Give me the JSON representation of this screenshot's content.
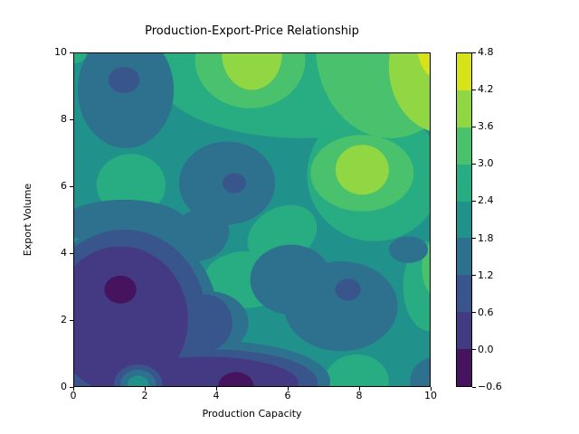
{
  "title": "Production-Export-Price Relationship",
  "axes": {
    "xlabel": "Production Capacity",
    "ylabel": "Export Volume",
    "x_range": [
      0,
      10
    ],
    "y_range": [
      0,
      10
    ],
    "x_ticks": [
      {
        "value": 0,
        "label": "0"
      },
      {
        "value": 2,
        "label": "2"
      },
      {
        "value": 4,
        "label": "4"
      },
      {
        "value": 6,
        "label": "6"
      },
      {
        "value": 8,
        "label": "8"
      },
      {
        "value": 10,
        "label": "10"
      }
    ],
    "y_ticks": [
      {
        "value": 0,
        "label": "0"
      },
      {
        "value": 2,
        "label": "2"
      },
      {
        "value": 4,
        "label": "4"
      },
      {
        "value": 6,
        "label": "6"
      },
      {
        "value": 8,
        "label": "8"
      },
      {
        "value": 10,
        "label": "10"
      }
    ]
  },
  "colorbar": {
    "range": [
      -0.6,
      4.8
    ],
    "segment_colors_top_to_bottom": [
      "#d8e219",
      "#90d743",
      "#4ac16d",
      "#27ad81",
      "#21918c",
      "#2d718e",
      "#39568c",
      "#443a83",
      "#46135e"
    ],
    "ticks": [
      {
        "value": 4.8,
        "label": "4.8"
      },
      {
        "value": 4.2,
        "label": "4.2"
      },
      {
        "value": 3.6,
        "label": "3.6"
      },
      {
        "value": 3.0,
        "label": "3.0"
      },
      {
        "value": 2.4,
        "label": "2.4"
      },
      {
        "value": 1.8,
        "label": "1.8"
      },
      {
        "value": 1.2,
        "label": "1.2"
      },
      {
        "value": 0.6,
        "label": "0.6"
      },
      {
        "value": 0.0,
        "label": "0.0"
      },
      {
        "value": -0.6,
        "label": "−0.6"
      }
    ]
  },
  "chart_data": {
    "type": "contour_filled",
    "title": "Production-Export-Price Relationship",
    "xlabel": "Production Capacity",
    "ylabel": "Export Volume",
    "x_range": [
      0,
      10
    ],
    "y_range": [
      0,
      10
    ],
    "z_range": [
      -0.6,
      4.8
    ],
    "levels": [
      -0.6,
      0.0,
      0.6,
      1.2,
      1.8,
      2.4,
      3.0,
      3.6,
      4.2,
      4.8
    ],
    "colormap": "viridis",
    "grid": false,
    "legend": "colorbar-right",
    "band_colors": [
      "#46135e",
      "#443a83",
      "#39568c",
      "#2d718e",
      "#21918c",
      "#27ad81",
      "#4ac16d",
      "#90d743",
      "#d8e219"
    ],
    "background_band": 5,
    "features": {
      "minima": [
        {
          "x": 1.4,
          "y": 2.9,
          "z": -0.5
        },
        {
          "x": 4.5,
          "y": 0.0,
          "z": -0.4
        },
        {
          "x": 1.4,
          "y": 9.2,
          "z": 0.9
        },
        {
          "x": 4.5,
          "y": 6.1,
          "z": 0.9
        },
        {
          "x": 7.7,
          "y": 2.9,
          "z": 0.9
        }
      ],
      "maxima": [
        {
          "x": 10.0,
          "y": 10.0,
          "z": 4.6
        },
        {
          "x": 5.0,
          "y": 10.0,
          "z": 4.0
        },
        {
          "x": 8.1,
          "y": 6.5,
          "z": 4.0
        },
        {
          "x": 1.6,
          "y": 6.05,
          "z": 2.7
        },
        {
          "x": 4.85,
          "y": 3.2,
          "z": 2.7
        },
        {
          "x": 7.95,
          "y": 0.15,
          "z": 2.8
        },
        {
          "x": 10.0,
          "y": 3.5,
          "z": 3.3
        },
        {
          "x": 1.8,
          "y": 0.1,
          "z": 2.0
        }
      ]
    },
    "regions": [
      {
        "band": 6,
        "x": 6.4,
        "y": 9.4,
        "rx": 4.1,
        "ry": 1.95
      },
      {
        "band": 6,
        "x": 8.45,
        "y": 6.35,
        "rx": 1.9,
        "ry": 2.0
      },
      {
        "band": 6,
        "x": 10.0,
        "y": 3.0,
        "rx": 0.75,
        "ry": 1.35
      },
      {
        "band": 6,
        "x": 4.85,
        "y": 3.2,
        "rx": 1.2,
        "ry": 0.85
      },
      {
        "band": 6,
        "x": 5.85,
        "y": 4.55,
        "rx": 1.05,
        "ry": 0.8,
        "rot": -35
      },
      {
        "band": 6,
        "x": 1.6,
        "y": 6.05,
        "rx": 0.97,
        "ry": 0.93
      },
      {
        "band": 6,
        "x": 0.0,
        "y": 10.0,
        "rx": 0.35,
        "ry": 0.3
      },
      {
        "band": 6,
        "x": 7.95,
        "y": 0.15,
        "rx": 0.9,
        "ry": 0.8
      },
      {
        "band": 7,
        "x": 4.95,
        "y": 9.8,
        "rx": 1.55,
        "ry": 1.45
      },
      {
        "band": 7,
        "x": 8.9,
        "y": 10.15,
        "rx": 2.1,
        "ry": 2.7
      },
      {
        "band": 7,
        "x": 8.1,
        "y": 6.4,
        "rx": 1.45,
        "ry": 1.15
      },
      {
        "band": 7,
        "x": 10.2,
        "y": 3.55,
        "rx": 0.42,
        "ry": 0.85
      },
      {
        "band": 8,
        "x": 5.0,
        "y": 10.0,
        "rx": 0.85,
        "ry": 1.1
      },
      {
        "band": 8,
        "x": 10.4,
        "y": 9.6,
        "rx": 1.55,
        "ry": 2.0
      },
      {
        "band": 8,
        "x": 8.1,
        "y": 6.5,
        "rx": 0.75,
        "ry": 0.75
      },
      {
        "band": 9,
        "x": 10.3,
        "y": 10.25,
        "rx": 0.65,
        "ry": 1.05
      },
      {
        "band": 4,
        "x": 1.45,
        "y": 8.9,
        "rx": 1.35,
        "ry": 1.75
      },
      {
        "band": 4,
        "x": 1.4,
        "y": 4.9,
        "rx": 1.75,
        "ry": 0.7
      },
      {
        "band": 4,
        "x": 4.3,
        "y": 6.1,
        "rx": 1.35,
        "ry": 1.25
      },
      {
        "band": 4,
        "x": 3.55,
        "y": 4.55,
        "rx": 0.85,
        "ry": 0.75,
        "rot": -40
      },
      {
        "band": 4,
        "x": 6.1,
        "y": 3.2,
        "rx": 1.15,
        "ry": 1.05
      },
      {
        "band": 4,
        "x": 7.5,
        "y": 2.4,
        "rx": 1.6,
        "ry": 1.35
      },
      {
        "band": 4,
        "x": 9.4,
        "y": 4.1,
        "rx": 0.55,
        "ry": 0.4
      },
      {
        "band": 4,
        "x": 10.1,
        "y": 0.15,
        "rx": 0.65,
        "ry": 0.7
      },
      {
        "band": 4,
        "x": 1.5,
        "y": 2.0,
        "rx": 2.55,
        "ry": 2.85
      },
      {
        "band": 4,
        "x": 4.0,
        "y": 0.15,
        "rx": 3.2,
        "ry": 1.2
      },
      {
        "band": 4,
        "x": 3.8,
        "y": 1.9,
        "rx": 1.1,
        "ry": 0.95
      },
      {
        "band": 3,
        "x": 1.4,
        "y": 2.1,
        "rx": 2.3,
        "ry": 2.6
      },
      {
        "band": 3,
        "x": 3.9,
        "y": 0.1,
        "rx": 2.95,
        "ry": 1.0
      },
      {
        "band": 3,
        "x": 3.7,
        "y": 1.9,
        "rx": 0.75,
        "ry": 0.85
      },
      {
        "band": 2,
        "x": 1.3,
        "y": 2.0,
        "rx": 1.9,
        "ry": 2.2
      },
      {
        "band": 2,
        "x": 3.7,
        "y": 0.1,
        "rx": 2.6,
        "ry": 0.78
      },
      {
        "band": 1,
        "x": 1.3,
        "y": 2.9,
        "rx": 0.45,
        "ry": 0.42
      },
      {
        "band": 1,
        "x": 4.55,
        "y": 0.0,
        "rx": 0.5,
        "ry": 0.42
      },
      {
        "band": 3,
        "x": 1.4,
        "y": 9.2,
        "rx": 0.44,
        "ry": 0.39
      },
      {
        "band": 3,
        "x": 4.5,
        "y": 6.1,
        "rx": 0.33,
        "ry": 0.3
      },
      {
        "band": 3,
        "x": 7.7,
        "y": 2.9,
        "rx": 0.36,
        "ry": 0.33
      },
      {
        "band": 3,
        "x": 1.8,
        "y": 0.05,
        "rx": 0.68,
        "ry": 0.6
      },
      {
        "band": 4,
        "x": 1.8,
        "y": 0.05,
        "rx": 0.5,
        "ry": 0.44
      },
      {
        "band": 5,
        "x": 1.8,
        "y": 0.05,
        "rx": 0.3,
        "ry": 0.26
      }
    ]
  }
}
